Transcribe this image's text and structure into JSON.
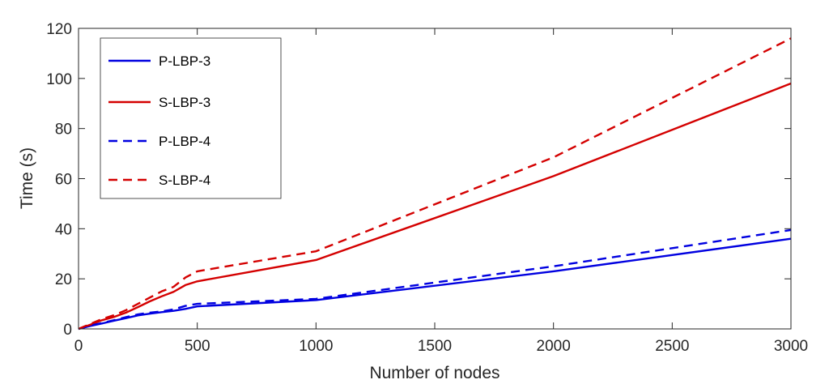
{
  "chart_data": {
    "type": "line",
    "title": "",
    "xlabel": "Number of nodes",
    "ylabel": "Time (s)",
    "xlim": [
      0,
      3000
    ],
    "ylim": [
      0,
      120
    ],
    "xticks": [
      0,
      500,
      1000,
      1500,
      2000,
      2500,
      3000
    ],
    "yticks": [
      0,
      20,
      40,
      60,
      80,
      100,
      120
    ],
    "grid": false,
    "legend_position": "top-left",
    "series": [
      {
        "name": "P-LBP-3",
        "color": "#0000e0",
        "dash": "solid",
        "x": [
          0,
          20,
          50,
          100,
          150,
          200,
          250,
          300,
          350,
          400,
          450,
          500,
          1000,
          2000,
          3000
        ],
        "y": [
          0,
          0.5,
          1.2,
          2.2,
          3.3,
          4.3,
          5.4,
          6.1,
          6.7,
          7.2,
          8.0,
          9.0,
          11.5,
          23.0,
          36.0
        ]
      },
      {
        "name": "S-LBP-3",
        "color": "#d40000",
        "dash": "solid",
        "x": [
          0,
          20,
          50,
          100,
          150,
          200,
          250,
          300,
          350,
          400,
          450,
          500,
          1000,
          2000,
          3000
        ],
        "y": [
          0,
          0.7,
          1.7,
          3.5,
          4.8,
          6.5,
          8.7,
          11.0,
          13.0,
          14.8,
          17.5,
          19.0,
          27.5,
          61.0,
          98.0
        ]
      },
      {
        "name": "P-LBP-4",
        "color": "#0000e0",
        "dash": "dashed",
        "x": [
          0,
          20,
          50,
          100,
          150,
          200,
          250,
          300,
          350,
          400,
          450,
          500,
          1000,
          2000,
          3000
        ],
        "y": [
          0,
          0.5,
          1.3,
          2.4,
          3.5,
          4.7,
          5.8,
          6.5,
          7.0,
          7.8,
          9.2,
          10.0,
          12.0,
          25.0,
          39.5
        ]
      },
      {
        "name": "S-LBP-4",
        "color": "#d40000",
        "dash": "dashed",
        "x": [
          0,
          20,
          50,
          100,
          150,
          200,
          250,
          300,
          350,
          400,
          450,
          500,
          1000,
          2000,
          3000
        ],
        "y": [
          0,
          0.8,
          2.0,
          4.0,
          5.5,
          7.5,
          10.0,
          12.5,
          15.0,
          16.8,
          20.5,
          23.0,
          31.0,
          68.5,
          116.0
        ]
      }
    ]
  }
}
